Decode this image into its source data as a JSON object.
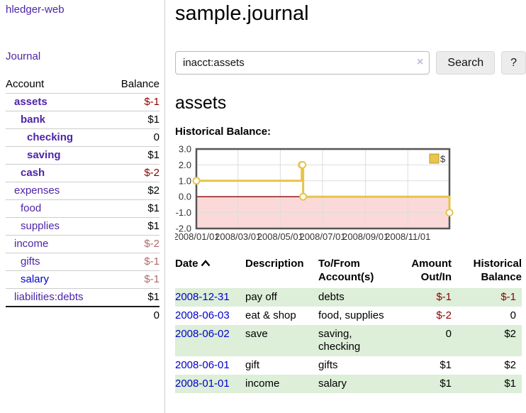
{
  "app": {
    "brand": "hledger-web"
  },
  "colors": {
    "purple": "#4e24a8",
    "link_blue": "#0000cc",
    "negative_strong": "#8b0000",
    "negative_weak": "#b26a6a",
    "row_stripe": "#ddeed9"
  },
  "sidebar": {
    "journal_link": "Journal",
    "headers": [
      "Account",
      "Balance"
    ],
    "rows": [
      {
        "account": "assets",
        "balance": "$-1",
        "depth": 0,
        "bold": true,
        "balance_style": "neg-strong"
      },
      {
        "account": "bank",
        "balance": "$1",
        "depth": 1,
        "bold": true,
        "balance_style": "pos"
      },
      {
        "account": "checking",
        "balance": "0",
        "depth": 2,
        "bold": true,
        "balance_style": "pos"
      },
      {
        "account": "saving",
        "balance": "$1",
        "depth": 2,
        "bold": true,
        "balance_style": "pos"
      },
      {
        "account": "cash",
        "balance": "$-2",
        "depth": 1,
        "bold": true,
        "balance_style": "neg-strong"
      },
      {
        "account": "expenses",
        "balance": "$2",
        "depth": 0,
        "bold": false,
        "balance_style": "pos"
      },
      {
        "account": "food",
        "balance": "$1",
        "depth": 1,
        "bold": false,
        "balance_style": "pos"
      },
      {
        "account": "supplies",
        "balance": "$1",
        "depth": 1,
        "bold": false,
        "balance_style": "pos"
      },
      {
        "account": "income",
        "balance": "$-2",
        "depth": 0,
        "bold": false,
        "balance_style": "neg-weak"
      },
      {
        "account": "gifts",
        "balance": "$-1",
        "depth": 1,
        "bold": false,
        "balance_style": "neg-weak"
      },
      {
        "account": "salary",
        "balance": "$-1",
        "depth": 1,
        "bold": false,
        "balance_style": "neg-weak",
        "link_style": "blue"
      },
      {
        "account": "liabilities:debts",
        "balance": "$1",
        "depth": 0,
        "bold": false,
        "balance_style": "pos"
      }
    ],
    "total": "0"
  },
  "header": {
    "title": "sample.journal"
  },
  "search": {
    "value": "inacct:assets",
    "clear_icon": "×",
    "button_label": "Search",
    "help_label": "?"
  },
  "main": {
    "account_title": "assets",
    "section_label": "Historical Balance:"
  },
  "chart_data": {
    "type": "line",
    "title": "Historical Balance",
    "step": true,
    "series": [
      {
        "name": "$",
        "points": [
          [
            "2008-01-01",
            1
          ],
          [
            "2008-06-01",
            2
          ],
          [
            "2008-06-02",
            2
          ],
          [
            "2008-06-03",
            0
          ],
          [
            "2008-12-31",
            -1
          ]
        ]
      }
    ],
    "xlim": [
      "2008-01-01",
      "2008-12-31"
    ],
    "ylim": [
      -2,
      3
    ],
    "y_tick_labels": [
      "3.0",
      "2.0",
      "1.0",
      "0.0",
      "-1.0",
      "-2.0"
    ],
    "x_tick_labels": [
      "2008/01/01",
      "2008/03/01",
      "2008/05/01",
      "2008/07/01",
      "2008/09/01",
      "2008/11/01"
    ],
    "legend": {
      "position": "top-right",
      "label": "$"
    },
    "grid": true,
    "colors": {
      "line": "#e7c44a",
      "marker_fill": "#ffffff",
      "negative_region": "#fbd9d9",
      "zero_line": "#8b0000",
      "grid": "#dddddd",
      "border": "#555555",
      "legend_fill": "#e9c64b",
      "legend_border": "#b99a2f",
      "tick_text": "#333333"
    }
  },
  "register": {
    "headers": [
      "Date",
      "Description",
      "To/From Account(s)",
      "Amount Out/In",
      "Historical Balance"
    ],
    "rows": [
      {
        "date": "2008-12-31",
        "description": "pay off",
        "accounts": "debts",
        "amount": "$-1",
        "balance": "$-1",
        "amount_negative": true,
        "balance_negative": true
      },
      {
        "date": "2008-06-03",
        "description": "eat & shop",
        "accounts": "food, supplies",
        "amount": "$-2",
        "balance": "0",
        "amount_negative": true,
        "balance_negative": false
      },
      {
        "date": "2008-06-02",
        "description": "save",
        "accounts": "saving, checking",
        "amount": "0",
        "balance": "$2",
        "amount_negative": false,
        "balance_negative": false
      },
      {
        "date": "2008-06-01",
        "description": "gift",
        "accounts": "gifts",
        "amount": "$1",
        "balance": "$2",
        "amount_negative": false,
        "balance_negative": false
      },
      {
        "date": "2008-01-01",
        "description": "income",
        "accounts": "salary",
        "amount": "$1",
        "balance": "$1",
        "amount_negative": false,
        "balance_negative": false
      }
    ]
  }
}
